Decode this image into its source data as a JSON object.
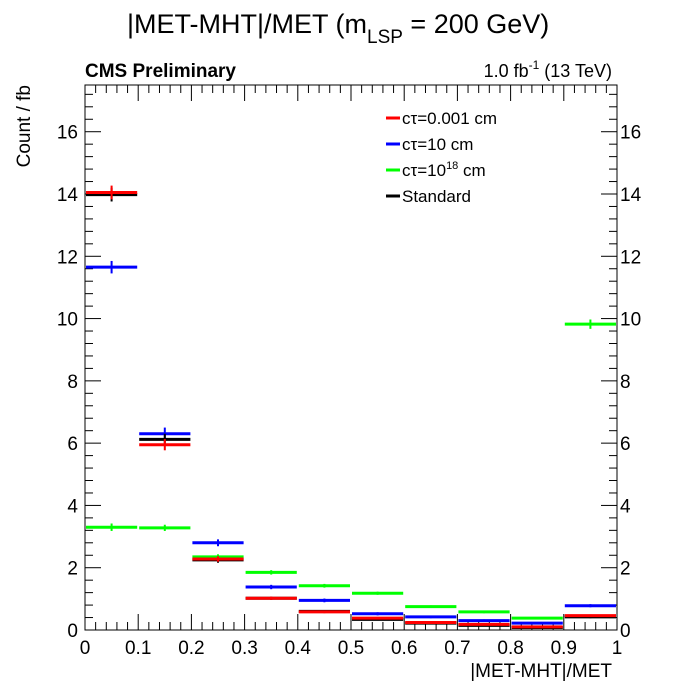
{
  "chart_data": {
    "type": "histogram",
    "title_main": "|MET-MHT|/MET (m",
    "title_sub": "LSP",
    "title_end": " = 200 GeV)",
    "experiment_label": "CMS Preliminary",
    "lumi_value": "1.0 fb",
    "lumi_exp": "-1",
    "lumi_energy": " (13 TeV)",
    "xlabel": "|MET-MHT|/MET",
    "ylabel": "Count / fb",
    "xlim": [
      0,
      1
    ],
    "ylim": [
      0,
      17.5
    ],
    "x_ticks": [
      0,
      0.1,
      0.2,
      0.3,
      0.4,
      0.5,
      0.6,
      0.7,
      0.8,
      0.9,
      1
    ],
    "x_tick_labels": [
      "0",
      "0.1",
      "0.2",
      "0.3",
      "0.4",
      "0.5",
      "0.6",
      "0.7",
      "0.8",
      "0.9",
      "1"
    ],
    "y_ticks": [
      0,
      2,
      4,
      6,
      8,
      10,
      12,
      14,
      16
    ],
    "y_tick_labels": [
      "0",
      "2",
      "4",
      "6",
      "8",
      "10",
      "12",
      "14",
      "16"
    ],
    "bin_edges": [
      0,
      0.1,
      0.2,
      0.3,
      0.4,
      0.5,
      0.6,
      0.7,
      0.8,
      0.9,
      1.0
    ],
    "legend_position": "top-right",
    "series": [
      {
        "name": "cτ=0.001 cm",
        "color": "#ff0000",
        "values": [
          14.05,
          5.95,
          2.28,
          1.02,
          0.58,
          0.38,
          0.24,
          0.18,
          0.1,
          0.46
        ],
        "errors": [
          0.22,
          0.18,
          0.09,
          0.05,
          0.04,
          0.03,
          0.03,
          0.02,
          0.02,
          0.04
        ]
      },
      {
        "name": "cτ=10 cm",
        "color": "#0000ff",
        "values": [
          11.65,
          6.3,
          2.8,
          1.38,
          0.95,
          0.52,
          0.42,
          0.3,
          0.22,
          0.78
        ],
        "errors": [
          0.2,
          0.2,
          0.11,
          0.07,
          0.06,
          0.05,
          0.04,
          0.04,
          0.03,
          0.05
        ]
      },
      {
        "name": "cτ=10",
        "name_exp": "18",
        "name_suffix": " cm",
        "color": "#00ff00",
        "values": [
          3.3,
          3.28,
          2.35,
          1.85,
          1.42,
          1.18,
          0.75,
          0.58,
          0.38,
          9.82
        ],
        "errors": [
          0.12,
          0.1,
          0.08,
          0.07,
          0.06,
          0.05,
          0.04,
          0.04,
          0.03,
          0.15
        ]
      },
      {
        "name": "Standard",
        "color": "#000000",
        "values": [
          13.98,
          6.12,
          2.25,
          1.02,
          0.6,
          0.34,
          0.22,
          0.15,
          0.08,
          0.42
        ],
        "errors": [
          0.22,
          0.18,
          0.09,
          0.05,
          0.04,
          0.03,
          0.03,
          0.02,
          0.02,
          0.04
        ]
      }
    ]
  }
}
